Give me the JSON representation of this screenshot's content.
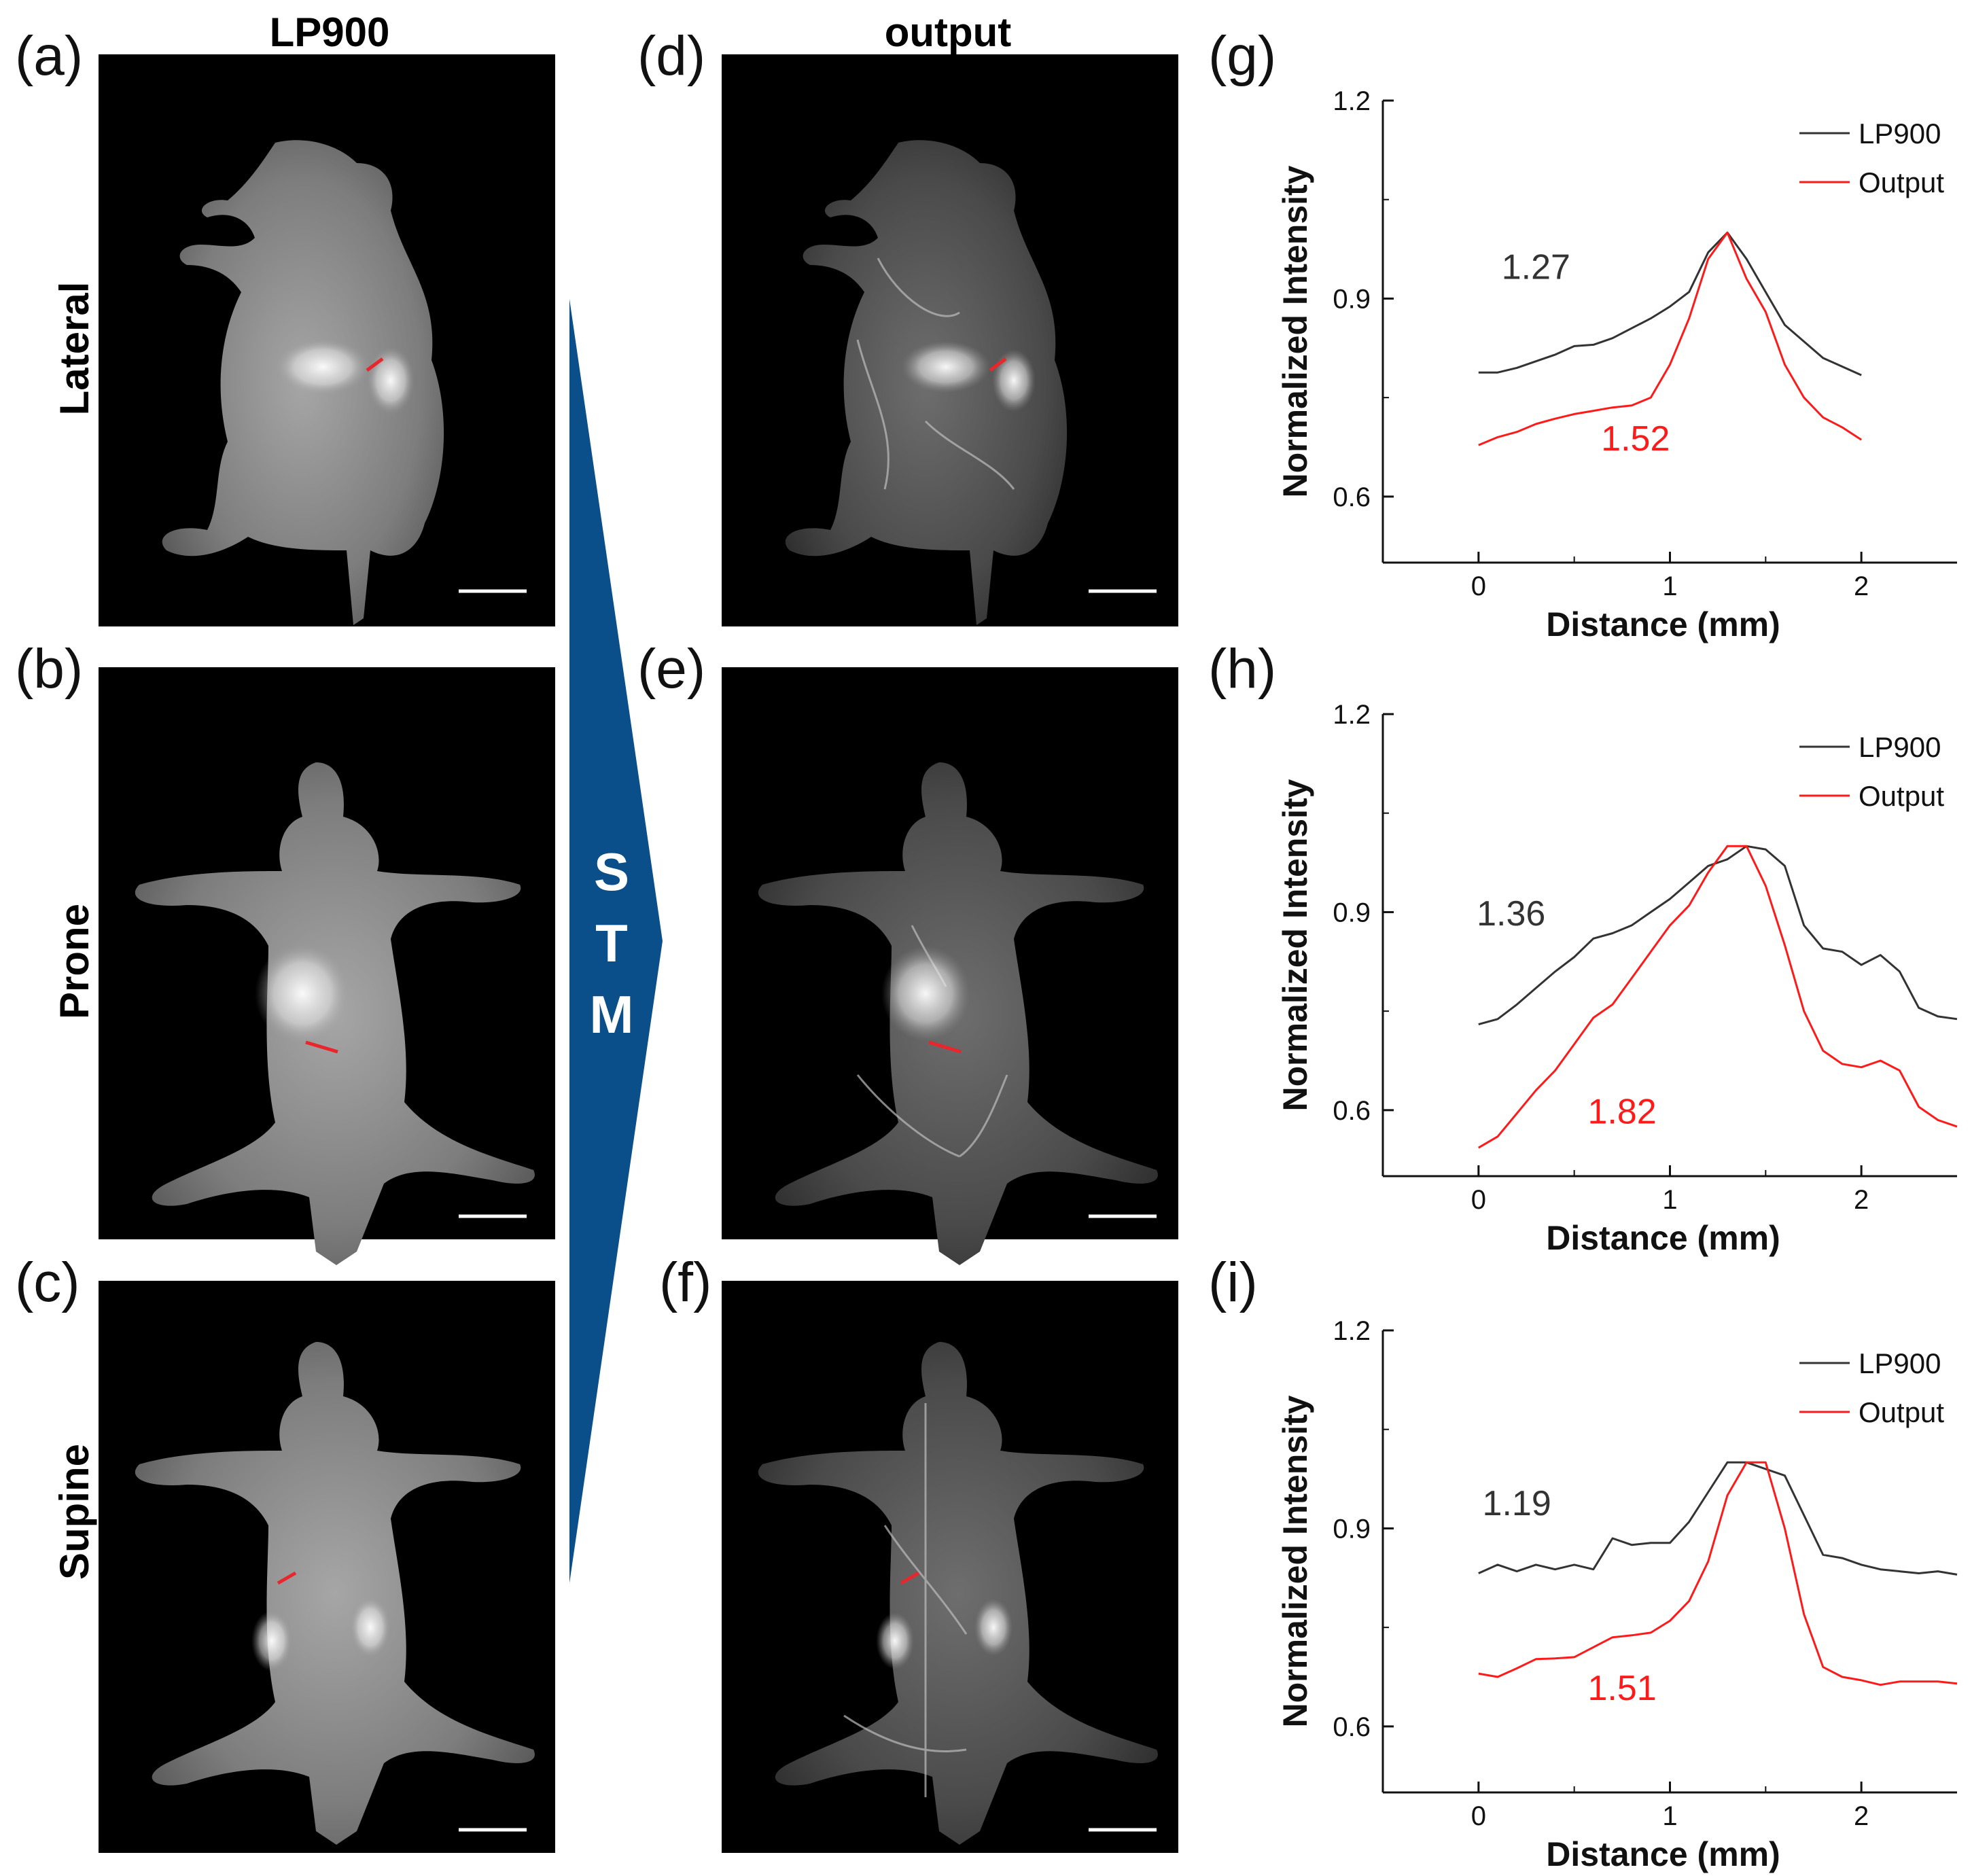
{
  "columns": {
    "left": "LP900",
    "middle": "output"
  },
  "rows": [
    "Lateral",
    "Prone",
    "Supine"
  ],
  "panel_labels": [
    "(a)",
    "(b)",
    "(c)",
    "(d)",
    "(e)",
    "(f)",
    "(g)",
    "(h)",
    "(i)"
  ],
  "arrow": {
    "letters": [
      "S",
      "T",
      "M"
    ],
    "color": "#0b4f8a"
  },
  "colors": {
    "lp900": "#333333",
    "output": "#ff1a1a",
    "marker": "#e8262b"
  },
  "chart_data": [
    {
      "type": "line",
      "label": "(g)",
      "xlabel": "Distance (mm)",
      "ylabel": "Normalized Intensity",
      "xlim": [
        -0.5,
        2.5
      ],
      "ylim": [
        0.5,
        1.2
      ],
      "xticks": [
        "0",
        "1",
        "2"
      ],
      "yticks": [
        "0.6",
        "0.9",
        "1.2"
      ],
      "legend": [
        "LP900",
        "Output"
      ],
      "legend_position": "top-right",
      "annotations": [
        {
          "text": "1.27",
          "series": "LP900",
          "x": 0.3,
          "y": 0.93
        },
        {
          "text": "1.52",
          "series": "Output",
          "x": 0.82,
          "y": 0.67
        }
      ],
      "series": [
        {
          "name": "LP900",
          "x": [
            0,
            0.1,
            0.2,
            0.3,
            0.4,
            0.5,
            0.6,
            0.7,
            0.8,
            0.9,
            1.0,
            1.1,
            1.2,
            1.3,
            1.4,
            1.5,
            1.6,
            1.7,
            1.8,
            1.9,
            2.0
          ],
          "y": [
            0.788,
            0.788,
            0.795,
            0.805,
            0.815,
            0.828,
            0.83,
            0.84,
            0.855,
            0.87,
            0.888,
            0.91,
            0.97,
            1.0,
            0.96,
            0.91,
            0.86,
            0.835,
            0.81,
            0.797,
            0.784
          ]
        },
        {
          "name": "Output",
          "x": [
            0,
            0.1,
            0.2,
            0.3,
            0.4,
            0.5,
            0.6,
            0.7,
            0.8,
            0.9,
            1.0,
            1.1,
            1.2,
            1.3,
            1.4,
            1.5,
            1.6,
            1.7,
            1.8,
            1.9,
            2.0
          ],
          "y": [
            0.678,
            0.69,
            0.698,
            0.71,
            0.718,
            0.725,
            0.73,
            0.735,
            0.738,
            0.75,
            0.8,
            0.87,
            0.96,
            1.0,
            0.93,
            0.88,
            0.8,
            0.75,
            0.72,
            0.705,
            0.686
          ]
        }
      ]
    },
    {
      "type": "line",
      "label": "(h)",
      "xlabel": "Distance (mm)",
      "ylabel": "Normalized Intensity",
      "xlim": [
        -0.5,
        2.5
      ],
      "ylim": [
        0.5,
        1.2
      ],
      "xticks": [
        "0",
        "1",
        "2"
      ],
      "yticks": [
        "0.6",
        "0.9",
        "1.2"
      ],
      "legend": [
        "LP900",
        "Output"
      ],
      "legend_position": "top-right",
      "annotations": [
        {
          "text": "1.36",
          "series": "LP900",
          "x": 0.17,
          "y": 0.88
        },
        {
          "text": "1.82",
          "series": "Output",
          "x": 0.75,
          "y": 0.58
        }
      ],
      "series": [
        {
          "name": "LP900",
          "x": [
            0,
            0.1,
            0.2,
            0.3,
            0.4,
            0.5,
            0.6,
            0.7,
            0.8,
            0.9,
            1.0,
            1.1,
            1.2,
            1.3,
            1.4,
            1.5,
            1.6,
            1.7,
            1.8,
            1.9,
            2.0,
            2.1,
            2.2,
            2.3,
            2.4,
            2.5
          ],
          "y": [
            0.73,
            0.738,
            0.76,
            0.785,
            0.81,
            0.832,
            0.86,
            0.868,
            0.88,
            0.9,
            0.92,
            0.945,
            0.97,
            0.98,
            1.0,
            0.995,
            0.97,
            0.88,
            0.845,
            0.84,
            0.82,
            0.835,
            0.81,
            0.755,
            0.742,
            0.738
          ]
        },
        {
          "name": "Output",
          "x": [
            0,
            0.1,
            0.2,
            0.3,
            0.4,
            0.5,
            0.6,
            0.7,
            0.8,
            0.9,
            1.0,
            1.1,
            1.2,
            1.3,
            1.4,
            1.5,
            1.6,
            1.7,
            1.8,
            1.9,
            2.0,
            2.1,
            2.2,
            2.3,
            2.4,
            2.5
          ],
          "y": [
            0.543,
            0.56,
            0.595,
            0.63,
            0.66,
            0.7,
            0.74,
            0.76,
            0.8,
            0.84,
            0.88,
            0.91,
            0.96,
            1.0,
            1.0,
            0.94,
            0.85,
            0.75,
            0.69,
            0.67,
            0.665,
            0.675,
            0.66,
            0.605,
            0.585,
            0.575
          ]
        }
      ]
    },
    {
      "type": "line",
      "label": "(i)",
      "xlabel": "Distance (mm)",
      "ylabel": "Normalized Intensity",
      "xlim": [
        -0.5,
        2.5
      ],
      "ylim": [
        0.5,
        1.2
      ],
      "xticks": [
        "0",
        "1",
        "2"
      ],
      "yticks": [
        "0.6",
        "0.9",
        "1.2"
      ],
      "legend": [
        "LP900",
        "Output"
      ],
      "legend_position": "top-right",
      "annotations": [
        {
          "text": "1.19",
          "series": "LP900",
          "x": 0.2,
          "y": 0.92
        },
        {
          "text": "1.51",
          "series": "Output",
          "x": 0.75,
          "y": 0.64
        }
      ],
      "series": [
        {
          "name": "LP900",
          "x": [
            0,
            0.1,
            0.2,
            0.3,
            0.4,
            0.5,
            0.6,
            0.7,
            0.8,
            0.9,
            1.0,
            1.1,
            1.2,
            1.3,
            1.4,
            1.5,
            1.6,
            1.7,
            1.8,
            1.9,
            2.0,
            2.1,
            2.2,
            2.3,
            2.4,
            2.5
          ],
          "y": [
            0.832,
            0.845,
            0.835,
            0.845,
            0.838,
            0.845,
            0.838,
            0.885,
            0.875,
            0.878,
            0.878,
            0.91,
            0.955,
            1.0,
            1.0,
            0.99,
            0.98,
            0.92,
            0.86,
            0.855,
            0.845,
            0.838,
            0.835,
            0.832,
            0.835,
            0.83
          ]
        },
        {
          "name": "Output",
          "x": [
            0,
            0.1,
            0.2,
            0.3,
            0.4,
            0.5,
            0.6,
            0.7,
            0.8,
            0.9,
            1.0,
            1.1,
            1.2,
            1.3,
            1.4,
            1.5,
            1.6,
            1.7,
            1.8,
            1.9,
            2.0,
            2.1,
            2.2,
            2.3,
            2.4,
            2.5
          ],
          "y": [
            0.68,
            0.675,
            0.688,
            0.702,
            0.703,
            0.705,
            0.72,
            0.735,
            0.738,
            0.742,
            0.76,
            0.79,
            0.85,
            0.95,
            1.0,
            1.0,
            0.9,
            0.77,
            0.69,
            0.675,
            0.67,
            0.663,
            0.668,
            0.668,
            0.668,
            0.665
          ]
        }
      ]
    }
  ]
}
